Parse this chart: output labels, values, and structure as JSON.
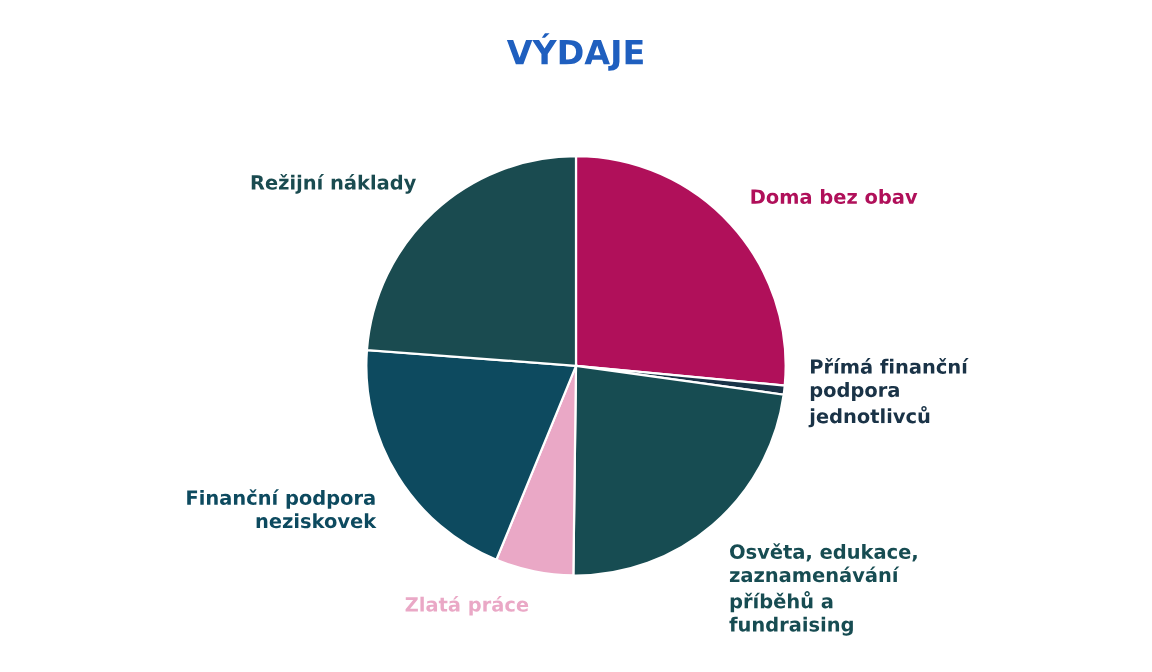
{
  "chart_data": {
    "type": "pie",
    "title": "VÝDAJE",
    "categories": [
      "Doma bez obav",
      "Přímá finanční\npodpora\njednotlivců",
      "Osvěta, edukace,\nzaznamenávání\npříběhů a\nfundraising",
      "Zlatá práce",
      "Finanční podpora\nneziskovek",
      "Režijní náklady"
    ],
    "values": [
      26.5,
      0.7,
      23,
      6,
      20,
      23.8
    ],
    "colors": [
      "#b0105a",
      "#1a3347",
      "#174c52",
      "#eaa8c6",
      "#0d4a5f",
      "#1a4b50"
    ],
    "legend": false
  }
}
